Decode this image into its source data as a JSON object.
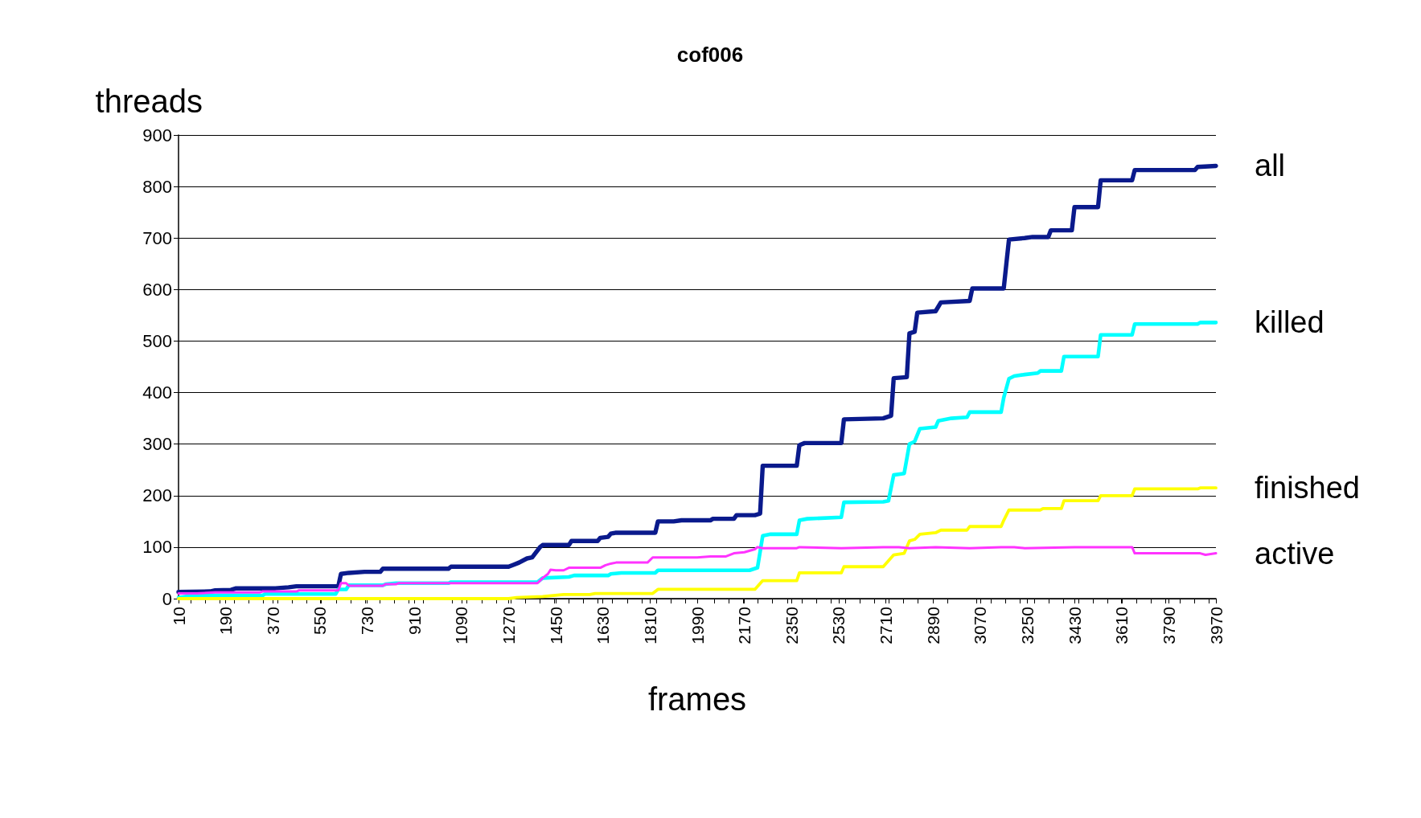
{
  "chart_data": {
    "type": "line",
    "title": "cof006",
    "xlabel": "frames",
    "ylabel": "threads",
    "xlim": [
      10,
      3970
    ],
    "xticks": [
      10,
      190,
      370,
      550,
      730,
      910,
      1090,
      1270,
      1450,
      1630,
      1810,
      1990,
      2170,
      2350,
      2530,
      2710,
      2890,
      3070,
      3250,
      3430,
      3610,
      3790,
      3970
    ],
    "ylim": [
      0,
      900
    ],
    "yticks": [
      0,
      100,
      200,
      300,
      400,
      500,
      600,
      700,
      800,
      900
    ],
    "grid": "y",
    "legend": false,
    "marker": "none",
    "line_style": "solid",
    "series": [
      {
        "name": "all",
        "color": "#0a1a8c",
        "x": [
          10,
          130,
          150,
          210,
          230,
          380,
          430,
          460,
          620,
          630,
          660,
          720,
          780,
          790,
          1040,
          1050,
          1270,
          1290,
          1310,
          1340,
          1360,
          1390,
          1400,
          1500,
          1510,
          1610,
          1620,
          1650,
          1660,
          1680,
          1830,
          1840,
          1900,
          1930,
          2040,
          2050,
          2130,
          2140,
          2210,
          2230,
          2240,
          2370,
          2380,
          2400,
          2540,
          2550,
          2700,
          2730,
          2740,
          2790,
          2800,
          2820,
          2830,
          2900,
          2920,
          3030,
          3040,
          3160,
          3170,
          3180,
          3240,
          3270,
          3330,
          3340,
          3420,
          3430,
          3520,
          3530,
          3650,
          3660,
          3890,
          3900,
          3970
        ],
        "values": [
          13,
          14,
          16,
          17,
          20,
          20,
          22,
          24,
          24,
          48,
          50,
          52,
          52,
          58,
          58,
          62,
          62,
          66,
          70,
          78,
          80,
          100,
          104,
          104,
          112,
          112,
          118,
          120,
          126,
          128,
          128,
          150,
          150,
          152,
          152,
          155,
          155,
          162,
          162,
          165,
          258,
          258,
          298,
          302,
          302,
          348,
          350,
          355,
          428,
          430,
          515,
          518,
          555,
          558,
          575,
          578,
          602,
          602,
          650,
          697,
          700,
          702,
          702,
          715,
          715,
          760,
          760,
          812,
          812,
          832,
          832,
          838,
          840
        ]
      },
      {
        "name": "killed",
        "color": "#00ffff",
        "x": [
          10,
          60,
          330,
          340,
          610,
          620,
          650,
          660,
          790,
          800,
          840,
          1040,
          1050,
          1380,
          1400,
          1500,
          1520,
          1650,
          1660,
          1700,
          1830,
          1840,
          2190,
          2220,
          2240,
          2270,
          2370,
          2380,
          2410,
          2540,
          2550,
          2700,
          2720,
          2740,
          2780,
          2800,
          2820,
          2840,
          2900,
          2910,
          2960,
          3020,
          3030,
          3150,
          3160,
          3180,
          3200,
          3240,
          3290,
          3300,
          3380,
          3390,
          3520,
          3530,
          3650,
          3660,
          3900,
          3910,
          3970
        ],
        "values": [
          2,
          6,
          6,
          9,
          9,
          18,
          18,
          26,
          26,
          28,
          30,
          30,
          32,
          32,
          40,
          42,
          45,
          45,
          48,
          50,
          50,
          55,
          55,
          60,
          122,
          125,
          125,
          152,
          155,
          158,
          187,
          188,
          190,
          240,
          243,
          300,
          305,
          330,
          333,
          345,
          350,
          352,
          362,
          362,
          390,
          427,
          432,
          435,
          438,
          442,
          442,
          470,
          470,
          512,
          512,
          533,
          533,
          536,
          536
        ]
      },
      {
        "name": "finished",
        "color": "#ffff00",
        "x": [
          10,
          1270,
          1300,
          1400,
          1440,
          1480,
          1580,
          1600,
          1820,
          1840,
          2210,
          2240,
          2370,
          2380,
          2540,
          2550,
          2700,
          2740,
          2780,
          2800,
          2820,
          2840,
          2900,
          2920,
          3020,
          3030,
          3150,
          3160,
          3180,
          3300,
          3310,
          3380,
          3390,
          3520,
          3530,
          3650,
          3660,
          3900,
          3910,
          3970
        ],
        "values": [
          0,
          0,
          2,
          4,
          6,
          8,
          8,
          10,
          10,
          18,
          18,
          35,
          35,
          50,
          50,
          62,
          62,
          85,
          88,
          112,
          115,
          125,
          128,
          133,
          133,
          140,
          140,
          152,
          172,
          172,
          175,
          175,
          190,
          190,
          200,
          200,
          213,
          213,
          215,
          215
        ]
      },
      {
        "name": "active",
        "color": "#ff33ff",
        "x": [
          10,
          80,
          150,
          320,
          330,
          460,
          470,
          620,
          630,
          650,
          660,
          790,
          800,
          840,
          850,
          1380,
          1390,
          1400,
          1420,
          1430,
          1450,
          1480,
          1500,
          1620,
          1640,
          1660,
          1680,
          1800,
          1820,
          1990,
          2040,
          2100,
          2130,
          2170,
          2210,
          2220,
          2240,
          2370,
          2380,
          2540,
          2700,
          2760,
          2800,
          2900,
          3030,
          3150,
          3200,
          3240,
          3430,
          3650,
          3660,
          3910,
          3930,
          3970
        ],
        "values": [
          10,
          10,
          12,
          12,
          14,
          14,
          16,
          16,
          30,
          30,
          25,
          25,
          28,
          28,
          30,
          30,
          35,
          40,
          48,
          56,
          55,
          55,
          60,
          60,
          65,
          68,
          70,
          70,
          80,
          80,
          82,
          82,
          88,
          90,
          96,
          100,
          98,
          98,
          100,
          98,
          100,
          100,
          98,
          100,
          98,
          100,
          100,
          98,
          100,
          100,
          88,
          88,
          85,
          88
        ]
      }
    ]
  }
}
